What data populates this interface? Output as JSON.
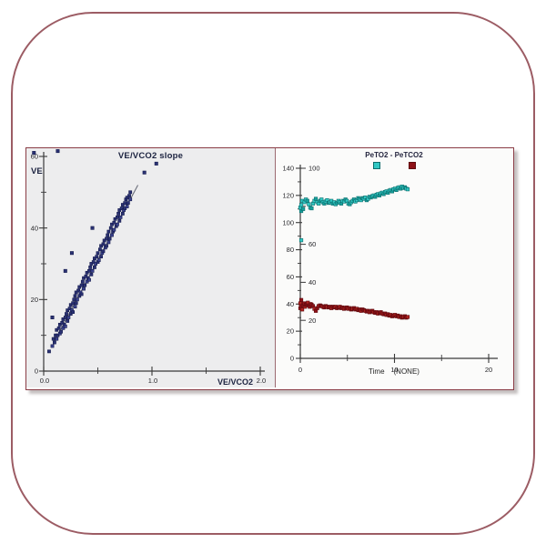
{
  "colors": {
    "frame_border": "#9c5c64",
    "chart_border": "#8a3c45",
    "axis": "#3a3a3a",
    "tick_text": "#26262a",
    "navy_text": "#1c2340",
    "scatter_fill": "#2b3274",
    "scatter_fill_alt": "#3c4490",
    "scatter_stroke": "#141a4d",
    "fit_line": "#6b6f7a",
    "cyan_fill": "#31c7c3",
    "cyan_fill_alt": "#17a09c",
    "cyan_stroke": "#0c6e6d",
    "red_fill": "#8e1117",
    "red_fill_alt": "#b02420",
    "red_stroke": "#5f0a0e",
    "left_bg": "#ededee",
    "right_bg": "#fbfbfa"
  },
  "chart_data": [
    {
      "type": "scatter",
      "title": "VE/VCO2 slope",
      "ylabel": "VE",
      "xlabel": "VE/VCO2",
      "xlim": [
        0,
        2.0
      ],
      "ylim": [
        0,
        60
      ],
      "grid": false,
      "x_ticks": [
        {
          "v": 0,
          "label": "0.0"
        },
        {
          "v": 1,
          "label": "1.0"
        },
        {
          "v": 2,
          "label": "2.0"
        }
      ],
      "x_minor": [
        0.5,
        1.5
      ],
      "y_ticks": [
        {
          "v": 0,
          "label": "0"
        },
        {
          "v": 20,
          "label": "20"
        },
        {
          "v": 40,
          "label": "40"
        },
        {
          "v": 60,
          "label": "60"
        }
      ],
      "y_minor": [
        10,
        30,
        50
      ],
      "fit_line": {
        "x1": 0.12,
        "y1": 9.5,
        "x2": 0.87,
        "y2": 52
      },
      "points": [
        [
          0.05,
          5.5
        ],
        [
          0.08,
          7
        ],
        [
          0.09,
          9
        ],
        [
          0.1,
          8
        ],
        [
          0.11,
          10
        ],
        [
          0.12,
          9
        ],
        [
          0.12,
          11.5
        ],
        [
          0.13,
          10
        ],
        [
          0.14,
          12
        ],
        [
          0.15,
          10.5
        ],
        [
          0.15,
          13
        ],
        [
          0.16,
          11
        ],
        [
          0.17,
          13.5
        ],
        [
          0.18,
          12
        ],
        [
          0.18,
          14.5
        ],
        [
          0.19,
          13
        ],
        [
          0.2,
          15
        ],
        [
          0.2,
          12.5
        ],
        [
          0.21,
          16
        ],
        [
          0.22,
          14
        ],
        [
          0.22,
          17
        ],
        [
          0.23,
          15
        ],
        [
          0.24,
          17.5
        ],
        [
          0.25,
          16
        ],
        [
          0.25,
          18.5
        ],
        [
          0.26,
          17
        ],
        [
          0.27,
          19
        ],
        [
          0.27,
          16.5
        ],
        [
          0.28,
          20
        ],
        [
          0.29,
          18
        ],
        [
          0.29,
          21
        ],
        [
          0.3,
          19
        ],
        [
          0.3,
          22
        ],
        [
          0.31,
          20
        ],
        [
          0.32,
          22.5
        ],
        [
          0.33,
          21
        ],
        [
          0.33,
          23.5
        ],
        [
          0.34,
          22
        ],
        [
          0.35,
          24
        ],
        [
          0.35,
          21.5
        ],
        [
          0.36,
          25
        ],
        [
          0.37,
          23
        ],
        [
          0.37,
          26
        ],
        [
          0.38,
          24
        ],
        [
          0.39,
          26.5
        ],
        [
          0.4,
          25
        ],
        [
          0.4,
          27.5
        ],
        [
          0.41,
          26
        ],
        [
          0.42,
          28
        ],
        [
          0.42,
          25.5
        ],
        [
          0.43,
          29
        ],
        [
          0.44,
          27
        ],
        [
          0.44,
          30
        ],
        [
          0.45,
          28
        ],
        [
          0.46,
          30.5
        ],
        [
          0.47,
          29
        ],
        [
          0.47,
          31.5
        ],
        [
          0.48,
          30
        ],
        [
          0.49,
          32
        ],
        [
          0.5,
          30.5
        ],
        [
          0.5,
          33
        ],
        [
          0.51,
          31
        ],
        [
          0.52,
          34
        ],
        [
          0.53,
          32
        ],
        [
          0.53,
          35
        ],
        [
          0.54,
          33
        ],
        [
          0.55,
          35.5
        ],
        [
          0.55,
          33.5
        ],
        [
          0.56,
          36.5
        ],
        [
          0.57,
          34.5
        ],
        [
          0.58,
          37
        ],
        [
          0.58,
          35
        ],
        [
          0.59,
          38
        ],
        [
          0.6,
          36
        ],
        [
          0.6,
          39
        ],
        [
          0.61,
          37
        ],
        [
          0.62,
          40
        ],
        [
          0.63,
          38
        ],
        [
          0.63,
          41
        ],
        [
          0.64,
          39
        ],
        [
          0.65,
          41.5
        ],
        [
          0.65,
          39.5
        ],
        [
          0.66,
          42.5
        ],
        [
          0.67,
          40.5
        ],
        [
          0.68,
          43
        ],
        [
          0.68,
          41
        ],
        [
          0.69,
          44
        ],
        [
          0.7,
          42
        ],
        [
          0.7,
          45
        ],
        [
          0.71,
          43
        ],
        [
          0.72,
          45.5
        ],
        [
          0.73,
          44
        ],
        [
          0.73,
          46.5
        ],
        [
          0.74,
          45
        ],
        [
          0.75,
          47
        ],
        [
          0.75,
          45.5
        ],
        [
          0.76,
          48
        ],
        [
          0.77,
          46
        ],
        [
          0.77,
          48.5
        ],
        [
          0.78,
          47
        ],
        [
          0.79,
          49
        ],
        [
          0.8,
          48
        ],
        [
          0.8,
          50
        ]
      ],
      "outliers": [
        [
          -0.09,
          61
        ],
        [
          0.13,
          61.5
        ],
        [
          0.93,
          55.5
        ],
        [
          1.04,
          58
        ],
        [
          0.08,
          15
        ],
        [
          0.2,
          28
        ],
        [
          0.26,
          33
        ],
        [
          0.45,
          40
        ]
      ]
    },
    {
      "type": "scatter",
      "title": "PeTO2 - PeTCO2",
      "xlabel": "Time",
      "xlabel_unit": "(NONE)",
      "xlim": [
        0,
        20
      ],
      "outer_ylim": [
        0,
        140
      ],
      "inner_ylim": [
        0,
        100
      ],
      "grid": false,
      "legend_position": "top",
      "x_ticks": [
        {
          "v": 0,
          "label": "0"
        },
        {
          "v": 10,
          "label": "10"
        },
        {
          "v": 20,
          "label": "20"
        }
      ],
      "x_minor": [
        5,
        15
      ],
      "outer_y_ticks": [
        {
          "v": 0,
          "label": "0"
        },
        {
          "v": 20,
          "label": "20"
        },
        {
          "v": 40,
          "label": "40"
        },
        {
          "v": 60,
          "label": "60"
        },
        {
          "v": 80,
          "label": "80"
        },
        {
          "v": 100,
          "label": "100"
        },
        {
          "v": 120,
          "label": "120"
        },
        {
          "v": 140,
          "label": "140"
        }
      ],
      "outer_y_minor": [
        10,
        30,
        50,
        70,
        90,
        110,
        130
      ],
      "inner_y_ticks": [
        {
          "v": 20,
          "label": "20"
        },
        {
          "v": 40,
          "label": "40"
        },
        {
          "v": 60,
          "label": "60"
        },
        {
          "v": 80,
          "label": ""
        },
        {
          "v": 100,
          "label": "100"
        }
      ],
      "series": [
        {
          "name": "PeTO2",
          "points": [
            [
              0,
              111
            ],
            [
              0.1,
              108.5
            ],
            [
              0.1,
              113
            ],
            [
              0.2,
              116
            ],
            [
              0.3,
              110
            ],
            [
              0.45,
              115
            ],
            [
              0.6,
              117
            ],
            [
              0.75,
              116
            ],
            [
              0.9,
              113.5
            ],
            [
              1.05,
              111
            ],
            [
              1.2,
              110.5
            ],
            [
              1.35,
              114
            ],
            [
              1.5,
              116
            ],
            [
              1.65,
              117.5
            ],
            [
              1.8,
              115
            ],
            [
              1.95,
              114
            ],
            [
              2.1,
              116
            ],
            [
              2.25,
              117
            ],
            [
              2.4,
              115
            ],
            [
              2.55,
              114
            ],
            [
              2.7,
              115.5
            ],
            [
              2.85,
              116.5
            ],
            [
              3,
              114.5
            ],
            [
              3.15,
              115
            ],
            [
              3.3,
              116
            ],
            [
              3.45,
              114
            ],
            [
              3.6,
              115
            ],
            [
              3.75,
              113.5
            ],
            [
              3.9,
              114.5
            ],
            [
              4.05,
              116
            ],
            [
              4.2,
              115
            ],
            [
              4.35,
              114
            ],
            [
              4.5,
              116
            ],
            [
              4.65,
              115.5
            ],
            [
              4.8,
              117
            ],
            [
              4.95,
              116
            ],
            [
              5.1,
              114
            ],
            [
              5.25,
              113.5
            ],
            [
              5.4,
              115
            ],
            [
              5.55,
              116
            ],
            [
              5.7,
              117
            ],
            [
              5.85,
              115.5
            ],
            [
              6,
              116.5
            ],
            [
              6.15,
              118
            ],
            [
              6.3,
              117
            ],
            [
              6.45,
              116.5
            ],
            [
              6.6,
              118
            ],
            [
              6.75,
              117.5
            ],
            [
              6.9,
              118.5
            ],
            [
              7.05,
              116.5
            ],
            [
              7.2,
              117.5
            ],
            [
              7.35,
              119
            ],
            [
              7.5,
              118.5
            ],
            [
              7.65,
              119.5
            ],
            [
              7.8,
              120
            ],
            [
              7.95,
              119
            ],
            [
              8.1,
              120.5
            ],
            [
              8.25,
              121
            ],
            [
              8.4,
              120
            ],
            [
              8.55,
              121.5
            ],
            [
              8.7,
              122
            ],
            [
              8.85,
              121
            ],
            [
              9,
              122.5
            ],
            [
              9.15,
              123
            ],
            [
              9.3,
              122
            ],
            [
              9.45,
              123.5
            ],
            [
              9.6,
              124
            ],
            [
              9.75,
              123
            ],
            [
              9.9,
              124.5
            ],
            [
              10.05,
              125
            ],
            [
              10.2,
              124
            ],
            [
              10.35,
              125.5
            ],
            [
              10.5,
              126
            ],
            [
              10.65,
              125
            ],
            [
              10.8,
              126.5
            ],
            [
              10.95,
              125.5
            ],
            [
              11.1,
              126
            ],
            [
              11.25,
              125
            ],
            [
              11.4,
              124.5
            ]
          ],
          "outliers": [
            [
              0.1,
              87
            ]
          ]
        },
        {
          "name": "PeTCO2",
          "points": [
            [
              0,
              37
            ],
            [
              0,
              40.5
            ],
            [
              0.1,
              43
            ],
            [
              0.1,
              38.5
            ],
            [
              0.2,
              36
            ],
            [
              0.3,
              39
            ],
            [
              0.4,
              40.5
            ],
            [
              0.5,
              38
            ],
            [
              0.6,
              39.5
            ],
            [
              0.7,
              40
            ],
            [
              0.8,
              41
            ],
            [
              0.9,
              39
            ],
            [
              1,
              38
            ],
            [
              1.1,
              40
            ],
            [
              1.2,
              39.5
            ],
            [
              1.35,
              38.5
            ],
            [
              1.5,
              36.5
            ],
            [
              1.65,
              35
            ],
            [
              1.8,
              37
            ],
            [
              1.95,
              38.5
            ],
            [
              2.1,
              39
            ],
            [
              2.25,
              38.5
            ],
            [
              2.4,
              38
            ],
            [
              2.55,
              37.5
            ],
            [
              2.7,
              38.5
            ],
            [
              2.85,
              38
            ],
            [
              3,
              37.5
            ],
            [
              3.15,
              38
            ],
            [
              3.3,
              37
            ],
            [
              3.45,
              38
            ],
            [
              3.6,
              37.5
            ],
            [
              3.75,
              38
            ],
            [
              3.9,
              37
            ],
            [
              4.05,
              37.5
            ],
            [
              4.2,
              38
            ],
            [
              4.35,
              37
            ],
            [
              4.5,
              37.5
            ],
            [
              4.65,
              36.5
            ],
            [
              4.8,
              37
            ],
            [
              4.95,
              37.5
            ],
            [
              5.1,
              36.5
            ],
            [
              5.25,
              37
            ],
            [
              5.4,
              36
            ],
            [
              5.55,
              36.5
            ],
            [
              5.7,
              37
            ],
            [
              5.85,
              36
            ],
            [
              6,
              36.5
            ],
            [
              6.15,
              35.5
            ],
            [
              6.3,
              36
            ],
            [
              6.45,
              35
            ],
            [
              6.6,
              36
            ],
            [
              6.75,
              35.5
            ],
            [
              6.9,
              35
            ],
            [
              7.05,
              34.5
            ],
            [
              7.2,
              35
            ],
            [
              7.35,
              34
            ],
            [
              7.5,
              34.5
            ],
            [
              7.65,
              35
            ],
            [
              7.8,
              34
            ],
            [
              7.95,
              33.5
            ],
            [
              8.1,
              34
            ],
            [
              8.25,
              33
            ],
            [
              8.4,
              33.5
            ],
            [
              8.55,
              34
            ],
            [
              8.7,
              33
            ],
            [
              8.85,
              32.5
            ],
            [
              9,
              33
            ],
            [
              9.15,
              32
            ],
            [
              9.3,
              32.5
            ],
            [
              9.45,
              31.5
            ],
            [
              9.6,
              32
            ],
            [
              9.75,
              31
            ],
            [
              9.9,
              31.5
            ],
            [
              10.05,
              32
            ],
            [
              10.2,
              31
            ],
            [
              10.35,
              31.5
            ],
            [
              10.5,
              30.5
            ],
            [
              10.65,
              31
            ],
            [
              10.8,
              30
            ],
            [
              10.95,
              30.5
            ],
            [
              11.1,
              31
            ],
            [
              11.25,
              30
            ],
            [
              11.4,
              30.5
            ]
          ],
          "outliers": []
        }
      ]
    }
  ]
}
